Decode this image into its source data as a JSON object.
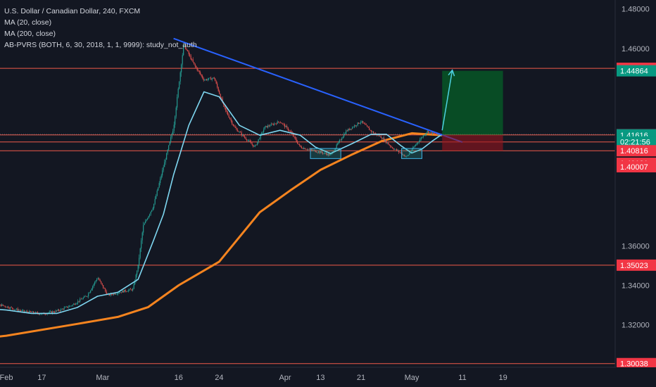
{
  "chart_data": {
    "type": "candlestick",
    "title": "U.S. Dollar / Canadian Dollar, 240, FXCM",
    "legend": [
      "MA (20, close)",
      "MA (200, close)",
      "AB-PVRS (BOTH, 6, 30, 2018, 1, 1, 9999): study_not_auth"
    ],
    "ylim": [
      1.2985,
      1.4845
    ],
    "y_ticks": [
      "1.48000",
      "1.46000",
      "1.36000",
      "1.34000",
      "1.32000"
    ],
    "x_ticks": [
      "Feb",
      "17",
      "Mar",
      "16",
      "24",
      "Apr",
      "13",
      "21",
      "May",
      "11",
      "19"
    ],
    "x_ticks_dates": [
      "2018-02-10",
      "2018-02-17",
      "2018-03-01",
      "2018-03-16",
      "2018-03-24",
      "2018-04-06",
      "2018-04-13",
      "2018-04-21",
      "2018-05-01",
      "2018-05-11",
      "2018-05-19"
    ],
    "grid": false,
    "price_labels": [
      {
        "text": "1.44991",
        "value": 1.44991,
        "color": "#f23645"
      },
      {
        "text": "1.44864",
        "value": 1.44864,
        "color": "#089981"
      },
      {
        "text": "1.41648",
        "value": 1.41648,
        "color": "#363a45"
      },
      {
        "text": "1.41616",
        "value": 1.41616,
        "color": "#089981"
      },
      {
        "text": "02:21:56",
        "value": 1.41262,
        "color": "#089981"
      },
      {
        "text": "1.40816",
        "value": 1.40816,
        "color": "#f23645"
      },
      {
        "text": "1.40181",
        "value": 1.40181,
        "color": "#f23645"
      },
      {
        "text": "1.40007",
        "value": 1.40007,
        "color": "#f23645"
      },
      {
        "text": "1.35023",
        "value": 1.35023,
        "color": "#f23645"
      },
      {
        "text": "1.30038",
        "value": 1.30038,
        "color": "#f23645"
      }
    ],
    "horizontal_levels": [
      1.44991,
      1.41616,
      1.41262,
      1.40816,
      1.35023,
      1.30038
    ],
    "trendline": {
      "from": [
        "2018-03-15",
        1.465
      ],
      "to": [
        "2018-05-11",
        1.4125
      ]
    },
    "position": {
      "entry": 1.41616,
      "target": 1.44864,
      "stop": 1.40816,
      "start": "2018-05-07",
      "end": "2018-05-19"
    },
    "projection": [
      [
        "2018-05-07",
        1.4185
      ],
      [
        "2018-05-09",
        1.449
      ]
    ],
    "support_boxes": [
      {
        "from": "2018-04-11",
        "to": "2018-04-17",
        "y_top": 1.4093,
        "y_bottom": 1.4042
      },
      {
        "from": "2018-04-29",
        "to": "2018-05-03",
        "y_top": 1.4093,
        "y_bottom": 1.4042
      }
    ],
    "price_path": [
      [
        "2018-02-01",
        1.3245
      ],
      [
        "2018-02-05",
        1.33
      ],
      [
        "2018-02-09",
        1.33
      ],
      [
        "2018-02-13",
        1.327
      ],
      [
        "2018-02-17",
        1.3255
      ],
      [
        "2018-02-20",
        1.327
      ],
      [
        "2018-02-23",
        1.33
      ],
      [
        "2018-02-26",
        1.335
      ],
      [
        "2018-02-28",
        1.344
      ],
      [
        "2018-03-02",
        1.335
      ],
      [
        "2018-03-05",
        1.337
      ],
      [
        "2018-03-07",
        1.338
      ],
      [
        "2018-03-08",
        1.35
      ],
      [
        "2018-03-09",
        1.37
      ],
      [
        "2018-03-11",
        1.38
      ],
      [
        "2018-03-13",
        1.4
      ],
      [
        "2018-03-15",
        1.42
      ],
      [
        "2018-03-17",
        1.462
      ],
      [
        "2018-03-19",
        1.452
      ],
      [
        "2018-03-21",
        1.444
      ],
      [
        "2018-03-23",
        1.445
      ],
      [
        "2018-03-25",
        1.43
      ],
      [
        "2018-03-27",
        1.42
      ],
      [
        "2018-03-29",
        1.415
      ],
      [
        "2018-03-31",
        1.41
      ],
      [
        "2018-04-02",
        1.42
      ],
      [
        "2018-04-05",
        1.423
      ],
      [
        "2018-04-07",
        1.418
      ],
      [
        "2018-04-09",
        1.41
      ],
      [
        "2018-04-12",
        1.408
      ],
      [
        "2018-04-15",
        1.406
      ],
      [
        "2018-04-18",
        1.418
      ],
      [
        "2018-04-21",
        1.423
      ],
      [
        "2018-04-23",
        1.418
      ],
      [
        "2018-04-25",
        1.415
      ],
      [
        "2018-04-27",
        1.41
      ],
      [
        "2018-04-30",
        1.405
      ],
      [
        "2018-05-02",
        1.412
      ],
      [
        "2018-05-04",
        1.418
      ],
      [
        "2018-05-06",
        1.416
      ],
      [
        "2018-05-07",
        1.4165
      ]
    ],
    "ma20_path": [
      [
        "2018-02-01",
        1.325
      ],
      [
        "2018-02-05",
        1.3285
      ],
      [
        "2018-02-10",
        1.3275
      ],
      [
        "2018-02-15",
        1.3258
      ],
      [
        "2018-02-20",
        1.3258
      ],
      [
        "2018-02-24",
        1.3288
      ],
      [
        "2018-02-28",
        1.3345
      ],
      [
        "2018-03-04",
        1.3365
      ],
      [
        "2018-03-08",
        1.343
      ],
      [
        "2018-03-11",
        1.3625
      ],
      [
        "2018-03-13",
        1.376
      ],
      [
        "2018-03-15",
        1.396
      ],
      [
        "2018-03-18",
        1.421
      ],
      [
        "2018-03-21",
        1.438
      ],
      [
        "2018-03-24",
        1.4355
      ],
      [
        "2018-03-28",
        1.421
      ],
      [
        "2018-04-01",
        1.416
      ],
      [
        "2018-04-05",
        1.4185
      ],
      [
        "2018-04-09",
        1.416
      ],
      [
        "2018-04-12",
        1.41
      ],
      [
        "2018-04-15",
        1.4068
      ],
      [
        "2018-04-19",
        1.4115
      ],
      [
        "2018-04-23",
        1.4165
      ],
      [
        "2018-04-26",
        1.4165
      ],
      [
        "2018-04-29",
        1.4105
      ],
      [
        "2018-05-01",
        1.407
      ],
      [
        "2018-05-03",
        1.409
      ],
      [
        "2018-05-05",
        1.413
      ],
      [
        "2018-05-07",
        1.4165
      ]
    ],
    "ma200_path": [
      [
        "2018-01-29",
        1.311
      ],
      [
        "2018-02-10",
        1.3145
      ],
      [
        "2018-02-24",
        1.3205
      ],
      [
        "2018-03-04",
        1.324
      ],
      [
        "2018-03-10",
        1.329
      ],
      [
        "2018-03-16",
        1.34
      ],
      [
        "2018-03-24",
        1.352
      ],
      [
        "2018-04-01",
        1.377
      ],
      [
        "2018-04-07",
        1.388
      ],
      [
        "2018-04-13",
        1.3985
      ],
      [
        "2018-04-19",
        1.406
      ],
      [
        "2018-04-25",
        1.413
      ],
      [
        "2018-05-01",
        1.417
      ],
      [
        "2018-05-07",
        1.416
      ]
    ]
  }
}
